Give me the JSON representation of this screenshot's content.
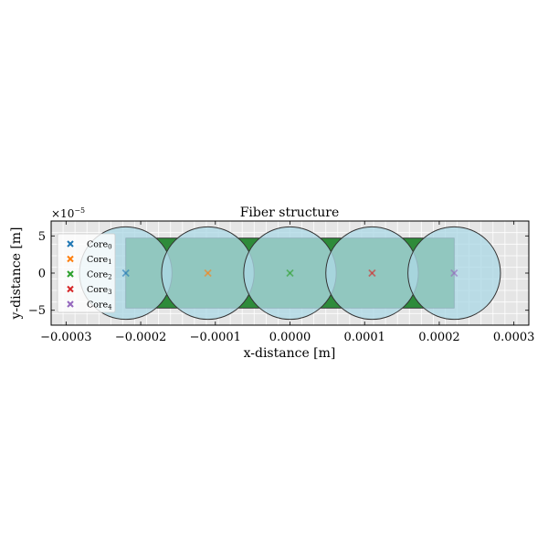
{
  "chart_data": {
    "type": "scatter",
    "title": "Fiber structure",
    "xlabel": "x-distance [m]",
    "ylabel": "y-distance [m]",
    "y_offset_label": "×10",
    "y_offset_exponent": "−5",
    "xlim": [
      -0.00032,
      0.00032
    ],
    "ylim": [
      -7e-05,
      7e-05
    ],
    "x_ticks": [
      -0.0003,
      -0.0002,
      -0.0001,
      0.0,
      0.0001,
      0.0002,
      0.0003
    ],
    "x_tick_labels": [
      "−0.0003",
      "−0.0002",
      "−0.0001",
      "0.0000",
      "0.0001",
      "0.0002",
      "0.0003"
    ],
    "y_ticks": [
      -5e-05,
      0.0,
      5e-05
    ],
    "y_tick_labels": [
      "−5",
      "0",
      "5"
    ],
    "grid": true,
    "legend_position": "left",
    "cladding_color": "#2e8b3a",
    "core_fill_color": "#add8e6",
    "background_color": "#e5e5e5",
    "core_radius": 6.2e-05,
    "cladding_band_halfheight": 4.7e-05,
    "cores": [
      {
        "label": "Core",
        "sub": "0",
        "x": -0.00022,
        "y": 0.0,
        "color": "#1f77b4"
      },
      {
        "label": "Core",
        "sub": "1",
        "x": -0.00011,
        "y": 0.0,
        "color": "#ff7f0e"
      },
      {
        "label": "Core",
        "sub": "2",
        "x": 0.0,
        "y": 0.0,
        "color": "#2ca02c"
      },
      {
        "label": "Core",
        "sub": "3",
        "x": 0.00011,
        "y": 0.0,
        "color": "#d62728"
      },
      {
        "label": "Core",
        "sub": "4",
        "x": 0.00022,
        "y": 0.0,
        "color": "#9467bd"
      }
    ]
  }
}
